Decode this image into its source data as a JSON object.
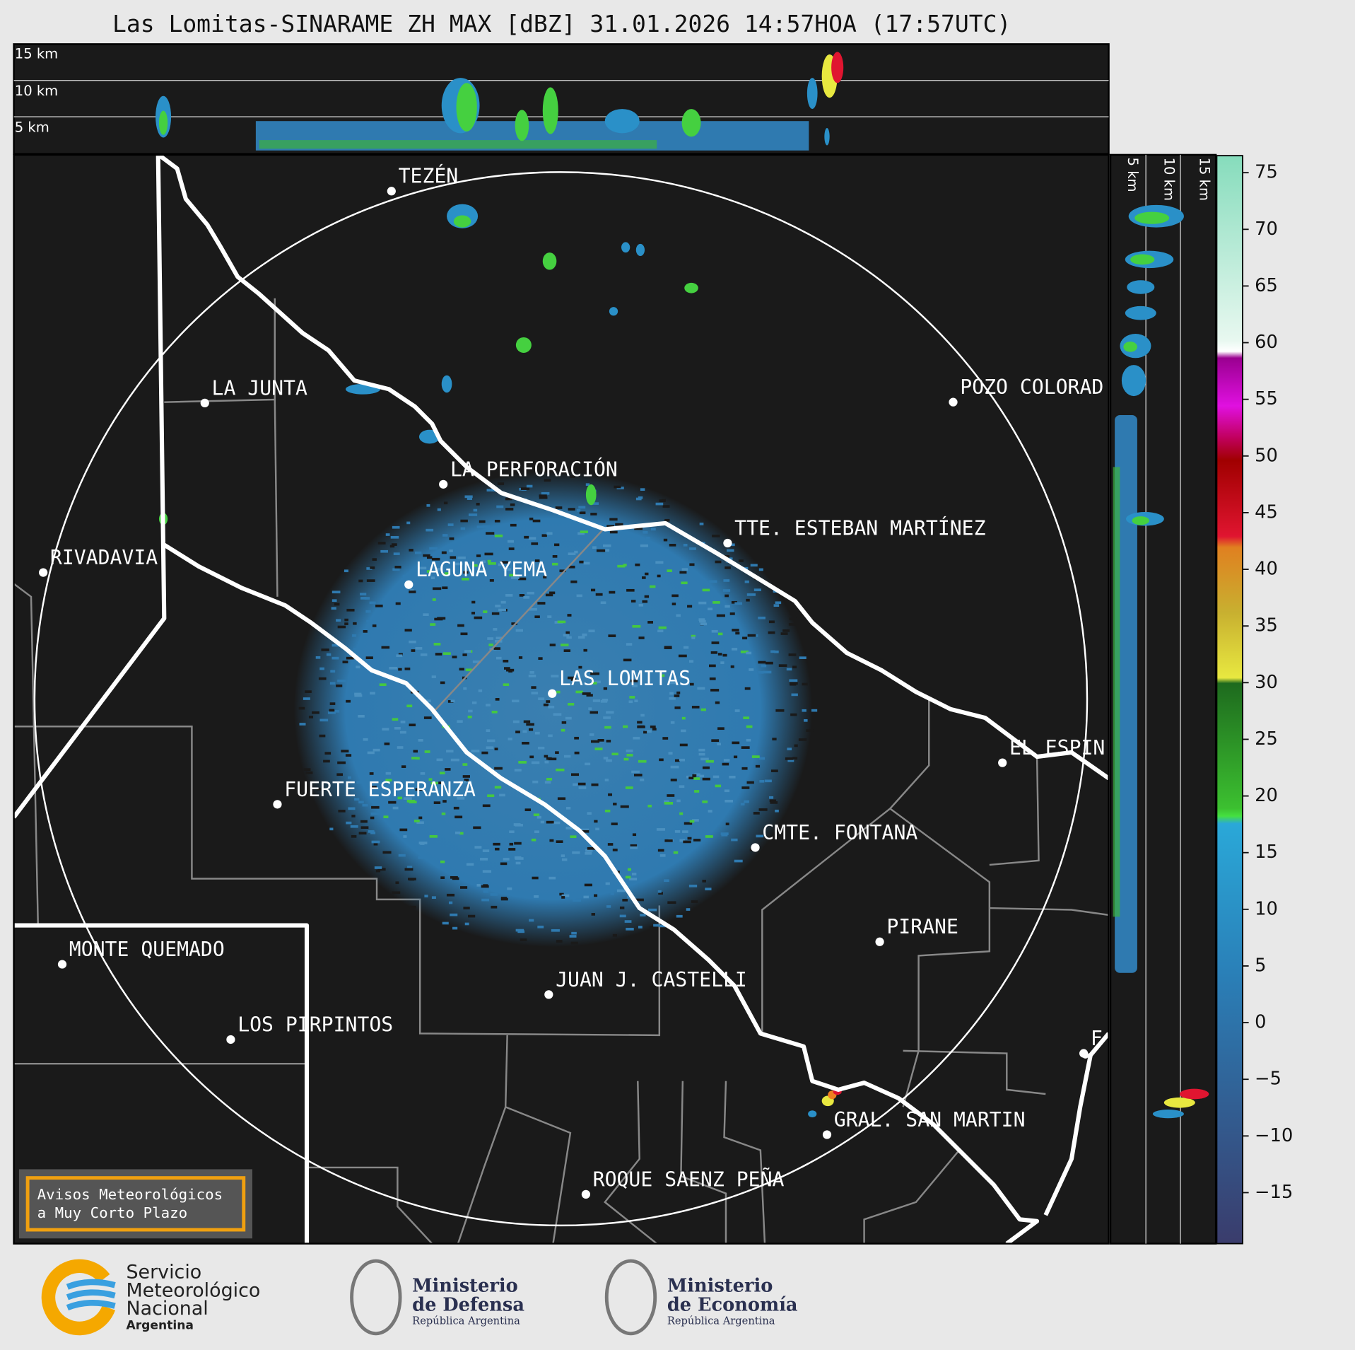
{
  "header": {
    "title": "Las Lomitas-SINARAME ZH MAX [dBZ] 31.01.2026 14:57HOA (17:57UTC)"
  },
  "profile_top": {
    "labels": [
      "15 km",
      "10 km",
      "5 km"
    ]
  },
  "profile_right": {
    "labels": [
      "5 km",
      "10 km",
      "15 km"
    ]
  },
  "map": {
    "places": [
      "TEZÉN",
      "LA JUNTA",
      "POZO COLORAD",
      "LA PERFORACIÓN",
      "TTE. ESTEBAN MARTÍNEZ",
      "RIVADAVIA",
      "LAGUNA YEMA",
      "LAS LOMITAS",
      "EL ESPIN",
      "FUERTE ESPERANZA",
      "CMTE. FONTANA",
      "PIRANE",
      "MONTE QUEMADO",
      "JUAN J. CASTELLI",
      "LOS PIRPINTOS",
      "F",
      "GRAL. SAN MARTIN",
      "ROQUE SAENZ PEÑA"
    ]
  },
  "colorbar": {
    "lim": [
      -19.5,
      76.5
    ],
    "ticks": [
      75,
      70,
      65,
      60,
      55,
      50,
      45,
      40,
      35,
      30,
      25,
      20,
      15,
      10,
      5,
      0,
      {
        "value": -5,
        "label": "−5"
      },
      {
        "value": -10,
        "label": "−10"
      },
      {
        "value": -15,
        "label": "−15"
      }
    ]
  },
  "notice": {
    "lines": [
      "Avisos Meteorológicos",
      "a Muy Corto Plazo"
    ]
  },
  "footer": {
    "smn": [
      "Servicio",
      "Meteorológico",
      "Nacional",
      "Argentina"
    ],
    "defensa": [
      "Ministerio",
      "de Defensa",
      "República Argentina"
    ],
    "economia": [
      "Ministerio",
      "de Economía",
      "República Argentina"
    ]
  }
}
